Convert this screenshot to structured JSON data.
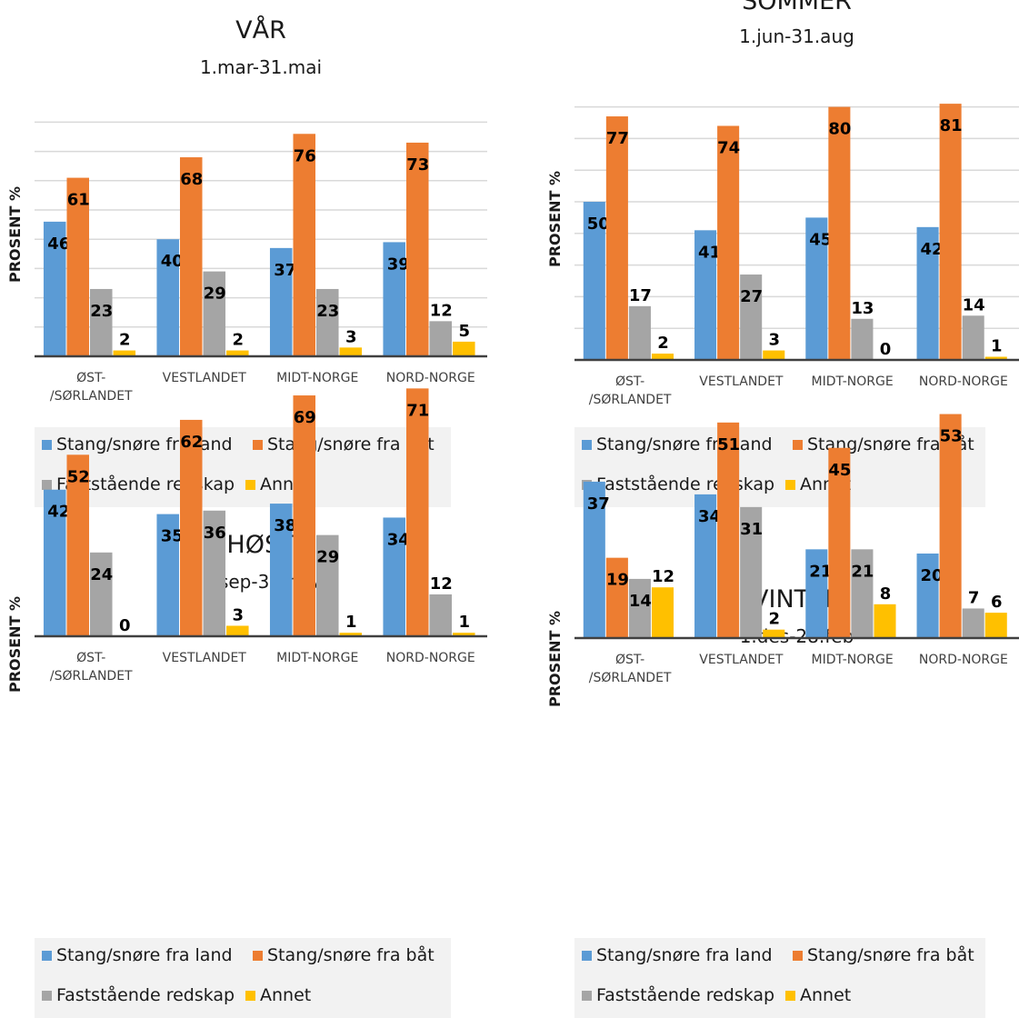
{
  "colors": {
    "land": "#5b9bd5",
    "boat": "#ed7d31",
    "fixed": "#a5a5a5",
    "other": "#ffc000"
  },
  "chart_data": [
    {
      "type": "bar",
      "title": "VÅR",
      "subtitle": "1.mar-31.mai",
      "ylabel": "PROSENT %",
      "categories": [
        "ØST-\n/SØRLANDET",
        "VESTLANDET",
        "MIDT-NORGE",
        "NORD-NORGE"
      ],
      "ylim": [
        0,
        80
      ],
      "series": [
        {
          "name": "Stang/snøre fra land",
          "values": [
            46,
            40,
            37,
            39
          ]
        },
        {
          "name": "Stang/snøre fra båt",
          "values": [
            61,
            68,
            76,
            73
          ]
        },
        {
          "name": "Faststående redskap",
          "values": [
            23,
            29,
            23,
            12
          ]
        },
        {
          "name": "Annet",
          "values": [
            2,
            2,
            3,
            5
          ]
        }
      ]
    },
    {
      "type": "bar",
      "title": "SOMMER",
      "subtitle": "1.jun-31.aug",
      "ylabel": "PROSENT %",
      "categories": [
        "ØST-\n/SØRLANDET",
        "VESTLANDET",
        "MIDT-NORGE",
        "NORD-NORGE"
      ],
      "ylim": [
        0,
        90
      ],
      "series": [
        {
          "name": "Stang/snøre fra land",
          "values": [
            50,
            41,
            45,
            42
          ]
        },
        {
          "name": "Stang/snøre fra båt",
          "values": [
            77,
            74,
            80,
            81
          ]
        },
        {
          "name": "Faststående redskap",
          "values": [
            17,
            27,
            13,
            14
          ]
        },
        {
          "name": "Annet",
          "values": [
            2,
            3,
            0,
            1
          ]
        }
      ]
    },
    {
      "type": "bar",
      "title": "HØST",
      "subtitle": "1.sep-31.nov",
      "ylabel": "PROSENT %",
      "categories": [
        "ØST-\n/SØRLANDET",
        "VESTLANDET",
        "MIDT-NORGE",
        "NORD-NORGE"
      ],
      "ylim": [
        0,
        80
      ],
      "series": [
        {
          "name": "Stang/snøre fra land",
          "values": [
            42,
            35,
            38,
            34
          ]
        },
        {
          "name": "Stang/snøre fra båt",
          "values": [
            52,
            62,
            69,
            71
          ]
        },
        {
          "name": "Faststående redskap",
          "values": [
            24,
            36,
            29,
            12
          ]
        },
        {
          "name": "Annet",
          "values": [
            0,
            3,
            1,
            1
          ]
        }
      ]
    },
    {
      "type": "bar",
      "title": "VINTER",
      "subtitle": "1.des-28.feb",
      "ylabel": "PROSENT %",
      "categories": [
        "ØST-\n/SØRLANDET",
        "VESTLANDET",
        "MIDT-NORGE",
        "NORD-NORGE"
      ],
      "ylim": [
        0,
        60
      ],
      "series": [
        {
          "name": "Stang/snøre fra land",
          "values": [
            37,
            34,
            21,
            20
          ]
        },
        {
          "name": "Stang/snøre fra båt",
          "values": [
            19,
            51,
            45,
            53
          ]
        },
        {
          "name": "Faststående redskap",
          "values": [
            14,
            31,
            21,
            7
          ]
        },
        {
          "name": "Annet",
          "values": [
            12,
            2,
            8,
            6
          ]
        }
      ]
    }
  ]
}
